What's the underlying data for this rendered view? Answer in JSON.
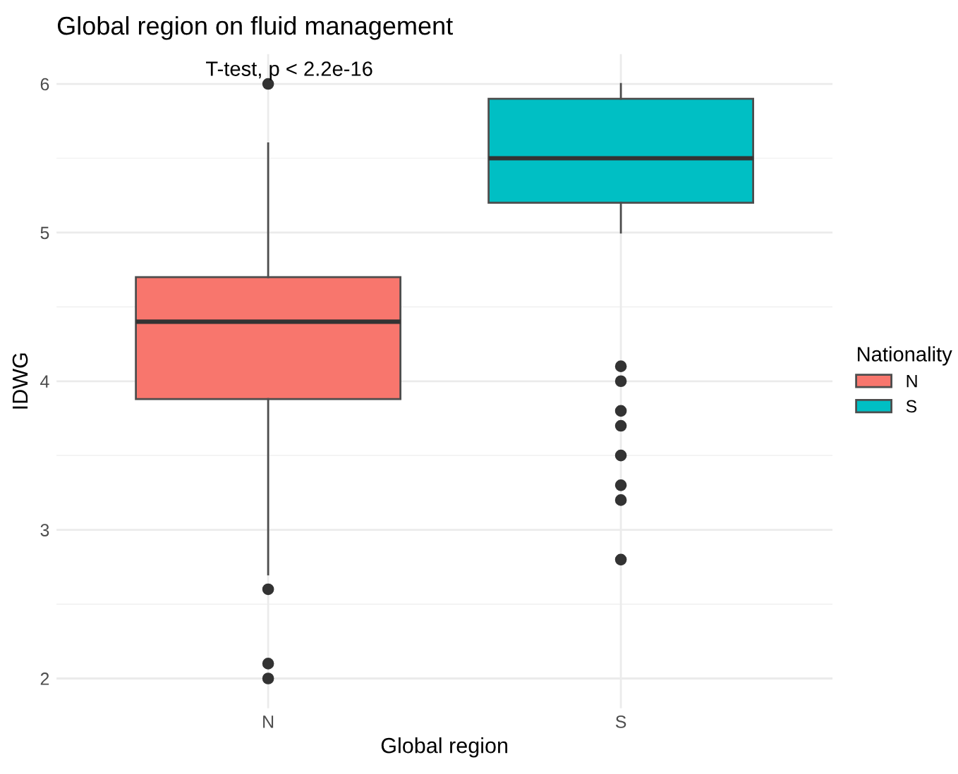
{
  "chart_data": {
    "type": "box",
    "title": "Global region on fluid management",
    "xlabel": "Global region",
    "ylabel": "IDWG",
    "legend_title": "Nationality",
    "categories": [
      "N",
      "S"
    ],
    "series": [
      {
        "name": "N",
        "color": "#f8766d",
        "boxes": [
          {
            "low": 2.7,
            "q1": 3.88,
            "median": 4.4,
            "q3": 4.7,
            "high": 5.6,
            "outliers": [
              6.0,
              2.6,
              2.1,
              2.0
            ]
          },
          null
        ]
      },
      {
        "name": "S",
        "color": "#00bfc4",
        "boxes": [
          null,
          {
            "low": 5.0,
            "q1": 5.2,
            "median": 5.5,
            "q3": 5.9,
            "high": 6.0,
            "outliers": [
              4.1,
              4.0,
              3.8,
              3.7,
              3.5,
              3.3,
              3.2,
              2.8
            ]
          }
        ]
      }
    ],
    "ylim": [
      1.8,
      6.2
    ],
    "yticks": [
      2,
      3,
      4,
      5,
      6
    ],
    "grid": true,
    "legend": "right",
    "annotations": [
      "T-test, p < 2.2e-16"
    ]
  }
}
